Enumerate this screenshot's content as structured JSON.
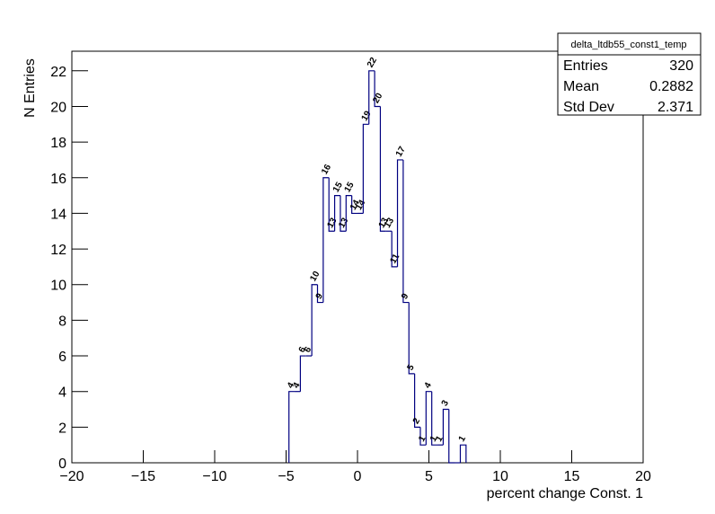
{
  "chart_data": {
    "type": "histogram",
    "title": "delta_ltdb55_const1_temp",
    "x_label": "percent change Const. 1",
    "y_label": "N Entries",
    "bins": [
      -4.8,
      -4.4,
      -4,
      -3.6,
      -3.2,
      -2.8,
      -2.4,
      -2,
      -1.6,
      -1.2,
      -0.8,
      -0.4,
      0,
      0.4,
      0.8,
      1.2,
      1.6,
      2,
      2.4,
      2.8,
      3.2,
      3.6,
      4,
      4.4,
      4.8,
      5.2,
      5.6,
      6,
      6.4,
      6.8,
      7.2,
      7.6
    ],
    "values": [
      4,
      4,
      6,
      6,
      10,
      9,
      16,
      13,
      15,
      13,
      15,
      14,
      14,
      19,
      22,
      20,
      13,
      13,
      11,
      17,
      9,
      5,
      2,
      1,
      4,
      1,
      1,
      3,
      0,
      0,
      1
    ],
    "color": "#000080",
    "xlim": [
      -20,
      20
    ],
    "xticks": [
      {
        "value": -20,
        "label": "−20"
      },
      {
        "value": -15,
        "label": "−15"
      },
      {
        "value": -10,
        "label": "−10"
      },
      {
        "value": -5,
        "label": "−5"
      },
      0,
      5,
      10,
      15,
      20
    ],
    "ylim": [
      0,
      23.1
    ],
    "yticks": [
      0,
      2,
      4,
      6,
      8,
      10,
      12,
      14,
      16,
      18,
      20,
      22
    ],
    "stats": [
      {
        "label": "Entries",
        "value": "320"
      },
      {
        "label": "Mean",
        "value": "0.2882"
      },
      {
        "label": "Std Dev",
        "value": "2.371"
      }
    ]
  }
}
